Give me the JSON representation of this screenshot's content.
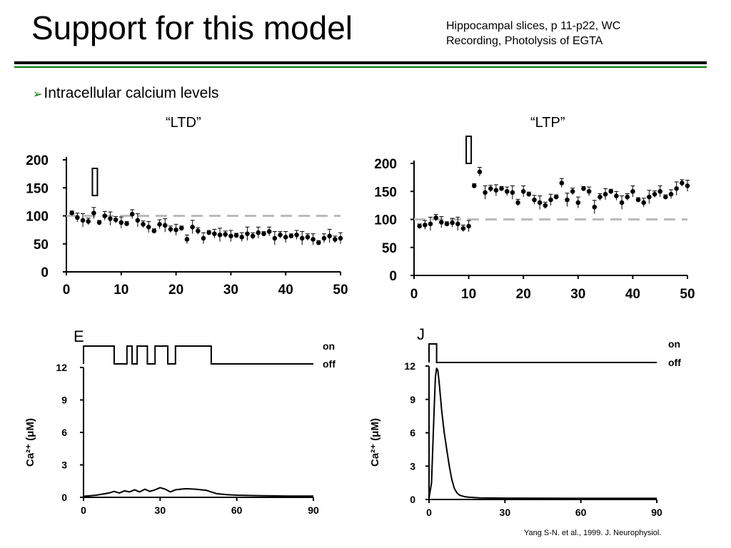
{
  "slide": {
    "title": "Support for this model",
    "subtitle_line1": "Hippocampal slices, p 11-p22, WC",
    "subtitle_line2": "Recording, Photolysis of EGTA",
    "bullet": "Intracellular calcium levels",
    "citation": "Yang S-N. et al., 1999. J. Neurophysiol."
  },
  "colors": {
    "accent_rule": "#007a00",
    "reference_line": "#bbbbbb",
    "trace": "#000000"
  },
  "chart_data": [
    {
      "type": "scatter",
      "title": "“LTD”",
      "xlim": [
        0,
        50
      ],
      "ylim": [
        0,
        200
      ],
      "xticks": [
        0,
        10,
        20,
        30,
        40,
        50
      ],
      "yticks": [
        0,
        50,
        100,
        150,
        200
      ],
      "reference_y": 100,
      "stimulus_x": 5.2,
      "points": [
        {
          "x": 1,
          "y": 105
        },
        {
          "x": 2,
          "y": 97
        },
        {
          "x": 3,
          "y": 92
        },
        {
          "x": 4,
          "y": 90
        },
        {
          "x": 5,
          "y": 105
        },
        {
          "x": 6,
          "y": 88
        },
        {
          "x": 7,
          "y": 100
        },
        {
          "x": 8,
          "y": 95
        },
        {
          "x": 9,
          "y": 93
        },
        {
          "x": 10,
          "y": 88
        },
        {
          "x": 11,
          "y": 86
        },
        {
          "x": 12,
          "y": 103
        },
        {
          "x": 13,
          "y": 92
        },
        {
          "x": 14,
          "y": 85
        },
        {
          "x": 15,
          "y": 80
        },
        {
          "x": 16,
          "y": 73
        },
        {
          "x": 17,
          "y": 85
        },
        {
          "x": 18,
          "y": 83
        },
        {
          "x": 19,
          "y": 76
        },
        {
          "x": 20,
          "y": 75
        },
        {
          "x": 21,
          "y": 78
        },
        {
          "x": 22,
          "y": 58
        },
        {
          "x": 23,
          "y": 80
        },
        {
          "x": 24,
          "y": 73
        },
        {
          "x": 25,
          "y": 60
        },
        {
          "x": 26,
          "y": 70
        },
        {
          "x": 27,
          "y": 68
        },
        {
          "x": 28,
          "y": 66
        },
        {
          "x": 29,
          "y": 67
        },
        {
          "x": 30,
          "y": 64
        },
        {
          "x": 31,
          "y": 65
        },
        {
          "x": 32,
          "y": 62
        },
        {
          "x": 33,
          "y": 68
        },
        {
          "x": 34,
          "y": 64
        },
        {
          "x": 35,
          "y": 70
        },
        {
          "x": 36,
          "y": 68
        },
        {
          "x": 37,
          "y": 72
        },
        {
          "x": 38,
          "y": 60
        },
        {
          "x": 39,
          "y": 66
        },
        {
          "x": 40,
          "y": 62
        },
        {
          "x": 41,
          "y": 64
        },
        {
          "x": 42,
          "y": 66
        },
        {
          "x": 43,
          "y": 60
        },
        {
          "x": 44,
          "y": 62
        },
        {
          "x": 45,
          "y": 58
        },
        {
          "x": 46,
          "y": 52
        },
        {
          "x": 47,
          "y": 60
        },
        {
          "x": 48,
          "y": 64
        },
        {
          "x": 49,
          "y": 58
        },
        {
          "x": 50,
          "y": 60
        }
      ]
    },
    {
      "type": "scatter",
      "title": "“LTP”",
      "xlim": [
        0,
        50
      ],
      "ylim": [
        0,
        200
      ],
      "xticks": [
        0,
        10,
        20,
        30,
        40,
        50
      ],
      "yticks": [
        0,
        50,
        100,
        150,
        200
      ],
      "reference_y": 100,
      "stimulus_x": 10.0,
      "points": [
        {
          "x": 1,
          "y": 88
        },
        {
          "x": 2,
          "y": 90
        },
        {
          "x": 3,
          "y": 92
        },
        {
          "x": 4,
          "y": 103
        },
        {
          "x": 5,
          "y": 95
        },
        {
          "x": 6,
          "y": 92
        },
        {
          "x": 7,
          "y": 94
        },
        {
          "x": 8,
          "y": 92
        },
        {
          "x": 9,
          "y": 84
        },
        {
          "x": 10,
          "y": 88
        },
        {
          "x": 11,
          "y": 160
        },
        {
          "x": 12,
          "y": 185
        },
        {
          "x": 13,
          "y": 148
        },
        {
          "x": 14,
          "y": 155
        },
        {
          "x": 15,
          "y": 152
        },
        {
          "x": 16,
          "y": 155
        },
        {
          "x": 17,
          "y": 150
        },
        {
          "x": 18,
          "y": 148
        },
        {
          "x": 19,
          "y": 130
        },
        {
          "x": 20,
          "y": 150
        },
        {
          "x": 21,
          "y": 145
        },
        {
          "x": 22,
          "y": 135
        },
        {
          "x": 23,
          "y": 130
        },
        {
          "x": 24,
          "y": 125
        },
        {
          "x": 25,
          "y": 135
        },
        {
          "x": 26,
          "y": 140
        },
        {
          "x": 27,
          "y": 165
        },
        {
          "x": 28,
          "y": 135
        },
        {
          "x": 29,
          "y": 150
        },
        {
          "x": 30,
          "y": 130
        },
        {
          "x": 31,
          "y": 155
        },
        {
          "x": 32,
          "y": 150
        },
        {
          "x": 33,
          "y": 122
        },
        {
          "x": 34,
          "y": 140
        },
        {
          "x": 35,
          "y": 145
        },
        {
          "x": 36,
          "y": 150
        },
        {
          "x": 37,
          "y": 142
        },
        {
          "x": 38,
          "y": 130
        },
        {
          "x": 39,
          "y": 140
        },
        {
          "x": 40,
          "y": 150
        },
        {
          "x": 41,
          "y": 135
        },
        {
          "x": 42,
          "y": 130
        },
        {
          "x": 43,
          "y": 140
        },
        {
          "x": 44,
          "y": 145
        },
        {
          "x": 45,
          "y": 150
        },
        {
          "x": 46,
          "y": 140
        },
        {
          "x": 47,
          "y": 145
        },
        {
          "x": 48,
          "y": 155
        },
        {
          "x": 49,
          "y": 165
        },
        {
          "x": 50,
          "y": 160
        }
      ]
    },
    {
      "type": "line",
      "panel_label": "E",
      "ylabel": "Ca²⁺ (μM)",
      "xlim": [
        0,
        90
      ],
      "ylim": [
        0,
        12
      ],
      "xticks": [
        0,
        30,
        60,
        90
      ],
      "yticks": [
        0,
        3,
        6,
        9,
        12
      ],
      "switch_labels": {
        "on": "on",
        "off": "off"
      },
      "switch_segments": [
        {
          "start": 0,
          "end": 12
        },
        {
          "start": 17,
          "end": 19
        },
        {
          "start": 21,
          "end": 25
        },
        {
          "start": 28,
          "end": 33
        },
        {
          "start": 36,
          "end": 50
        }
      ],
      "series": [
        {
          "x": [
            0,
            5,
            10,
            12,
            14,
            16,
            18,
            20,
            22,
            24,
            26,
            28,
            30,
            32,
            34,
            36,
            40,
            44,
            48,
            50,
            52,
            56,
            60,
            70,
            80,
            90
          ],
          "y": [
            0.1,
            0.2,
            0.4,
            0.55,
            0.4,
            0.6,
            0.5,
            0.7,
            0.5,
            0.75,
            0.55,
            0.7,
            0.9,
            0.75,
            0.5,
            0.7,
            0.8,
            0.75,
            0.65,
            0.5,
            0.35,
            0.25,
            0.2,
            0.15,
            0.12,
            0.12
          ]
        }
      ]
    },
    {
      "type": "line",
      "panel_label": "J",
      "ylabel": "Ca²⁺ (μM)",
      "xlim": [
        0,
        90
      ],
      "ylim": [
        0,
        12
      ],
      "xticks": [
        0,
        30,
        60,
        90
      ],
      "yticks": [
        0,
        3,
        6,
        9,
        12
      ],
      "switch_labels": {
        "on": "on",
        "off": "off"
      },
      "switch_segments": [
        {
          "start": 0,
          "end": 3
        }
      ],
      "series": [
        {
          "x": [
            0,
            1,
            2,
            2.5,
            3,
            3.5,
            4,
            5,
            6,
            7,
            8,
            9,
            10,
            11,
            12,
            14,
            16,
            20,
            30,
            60,
            90
          ],
          "y": [
            0.1,
            1.5,
            8,
            11,
            11.8,
            11.6,
            10.5,
            8,
            6,
            4.5,
            3,
            1.8,
            1,
            0.6,
            0.4,
            0.25,
            0.2,
            0.15,
            0.12,
            0.1,
            0.1
          ]
        }
      ]
    }
  ]
}
